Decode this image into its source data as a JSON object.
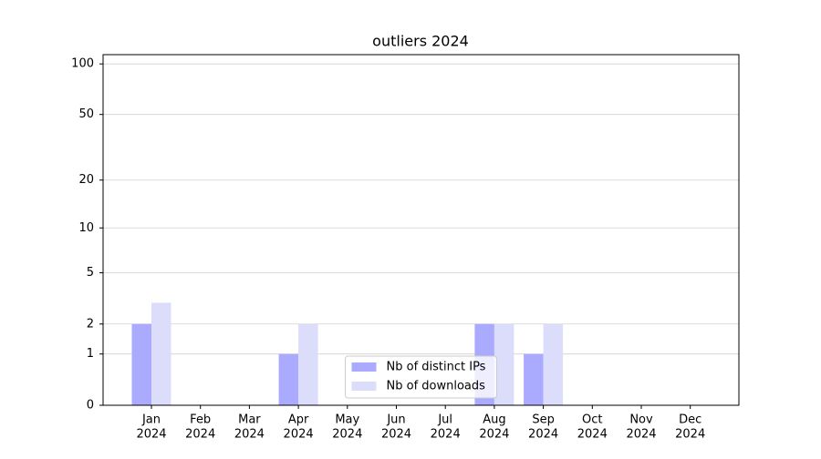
{
  "chart_data": {
    "type": "bar",
    "title": "outliers 2024",
    "categories": [
      [
        "Jan",
        "2024"
      ],
      [
        "Feb",
        "2024"
      ],
      [
        "Mar",
        "2024"
      ],
      [
        "Apr",
        "2024"
      ],
      [
        "May",
        "2024"
      ],
      [
        "Jun",
        "2024"
      ],
      [
        "Jul",
        "2024"
      ],
      [
        "Aug",
        "2024"
      ],
      [
        "Sep",
        "2024"
      ],
      [
        "Oct",
        "2024"
      ],
      [
        "Nov",
        "2024"
      ],
      [
        "Dec",
        "2024"
      ]
    ],
    "series": [
      {
        "name": "Nb of distinct IPs",
        "color": "#aaaaff",
        "values": [
          2,
          0,
          0,
          1,
          0,
          0,
          0,
          2,
          1,
          0,
          0,
          0
        ]
      },
      {
        "name": "Nb of downloads",
        "color": "#dcdcfb",
        "values": [
          3,
          0,
          0,
          2,
          0,
          0,
          0,
          2,
          2,
          0,
          0,
          0
        ]
      }
    ],
    "yscale": "log1p",
    "ylim": [
      0,
      113.5
    ],
    "yticks": [
      0,
      1,
      2,
      5,
      10,
      20,
      50,
      100
    ],
    "grid": true,
    "legend": "lower center"
  }
}
